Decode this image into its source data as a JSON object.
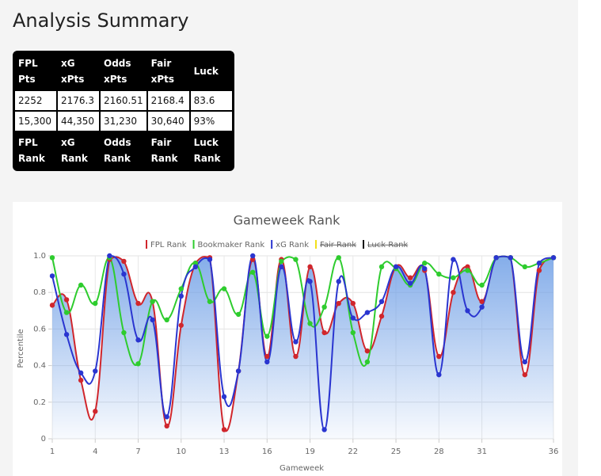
{
  "header": {
    "title": "Analysis Summary"
  },
  "table": {
    "header": [
      "FPL Pts",
      "xG xPts",
      "Odds xPts",
      "Fair xPts",
      "Luck"
    ],
    "rows": [
      [
        "2252",
        "2176.3",
        "2160.51",
        "2168.4",
        "83.6"
      ],
      [
        "15,300",
        "44,350",
        "31,230",
        "30,640",
        "93%"
      ]
    ],
    "footer": [
      "FPL Rank",
      "xG Rank",
      "Odds Rank",
      "Fair Rank",
      "Luck Rank"
    ]
  },
  "chart_data": {
    "type": "line",
    "title": "Gameweek Rank",
    "x_label": "Gameweek",
    "y_label": "Percentile",
    "x": [
      1,
      2,
      3,
      4,
      5,
      6,
      7,
      8,
      9,
      10,
      11,
      12,
      13,
      14,
      15,
      16,
      17,
      18,
      19,
      20,
      21,
      22,
      23,
      24,
      25,
      26,
      27,
      28,
      29,
      30,
      31,
      32,
      33,
      34,
      35,
      36
    ],
    "xlim": [
      1,
      36
    ],
    "xticks": [
      1,
      4,
      7,
      10,
      13,
      16,
      19,
      22,
      25,
      28,
      31,
      36
    ],
    "ylim": [
      0,
      1
    ],
    "yticks": [
      0,
      0.2,
      0.4,
      0.6,
      0.8,
      {
        "value": 1,
        "label": "1.0"
      }
    ],
    "grid": true,
    "legend": "top",
    "series": [
      {
        "name": "FPL Rank",
        "color": "#d0262c",
        "fill": true,
        "values": [
          0.73,
          0.76,
          0.32,
          0.15,
          0.98,
          0.97,
          0.74,
          0.75,
          0.07,
          0.62,
          0.96,
          0.99,
          0.05,
          0.37,
          0.98,
          0.45,
          0.98,
          0.45,
          0.94,
          0.58,
          0.74,
          0.74,
          0.48,
          0.67,
          0.94,
          0.88,
          0.92,
          0.45,
          0.8,
          0.94,
          0.75,
          0.99,
          0.99,
          0.35,
          0.92,
          0.99
        ]
      },
      {
        "name": "Bookmaker Rank",
        "color": "#2ecc2e",
        "values": [
          0.99,
          0.69,
          0.84,
          0.74,
          0.99,
          0.58,
          0.41,
          0.75,
          0.65,
          0.82,
          0.96,
          0.75,
          0.82,
          0.68,
          0.91,
          0.56,
          0.97,
          0.98,
          0.63,
          0.72,
          0.99,
          0.58,
          0.42,
          0.94,
          0.93,
          0.84,
          0.96,
          0.9,
          0.88,
          0.92,
          0.84,
          0.99,
          0.99,
          0.94,
          0.96,
          0.99
        ]
      },
      {
        "name": "xG Rank",
        "color": "#2a35d0",
        "values": [
          0.89,
          0.57,
          0.36,
          0.37,
          1.0,
          0.9,
          0.54,
          0.65,
          0.12,
          0.78,
          0.94,
          0.98,
          0.23,
          0.37,
          1.0,
          0.42,
          0.94,
          0.53,
          0.86,
          0.05,
          0.86,
          0.66,
          0.69,
          0.75,
          0.94,
          0.85,
          0.93,
          0.35,
          0.98,
          0.7,
          0.72,
          0.99,
          0.99,
          0.42,
          0.96,
          0.99
        ]
      },
      {
        "name": "Fair Rank",
        "color": "#f2e01a",
        "hidden": true
      },
      {
        "name": "Luck Rank",
        "color": "#111111",
        "hidden": true
      }
    ]
  }
}
